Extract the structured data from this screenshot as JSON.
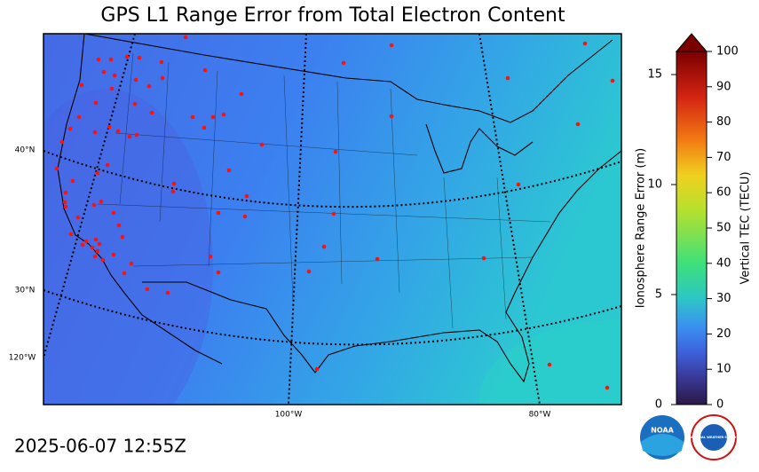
{
  "title": "GPS L1 Range Error from Total Electron Content",
  "timestamp": "2025-06-07 12:55Z",
  "map": {
    "lat_labels": [
      "40°N",
      "30°N"
    ],
    "lon_labels": [
      "120°W",
      "100°W",
      "80°W"
    ]
  },
  "colorbar": {
    "left_label": "Ionosphere Range Error (m)",
    "right_label": "Vertical TEC (TECU)",
    "left_lim": [
      0,
      16.05
    ],
    "left_ticks": [
      0,
      5,
      10,
      15
    ],
    "right_lim": [
      0,
      100
    ],
    "right_ticks": [
      0,
      10,
      20,
      30,
      40,
      50,
      60,
      70,
      80,
      90,
      100
    ]
  },
  "logos": {
    "noaa": "NOAA",
    "nws": "NATIONAL WEATHER SERVICE"
  }
}
